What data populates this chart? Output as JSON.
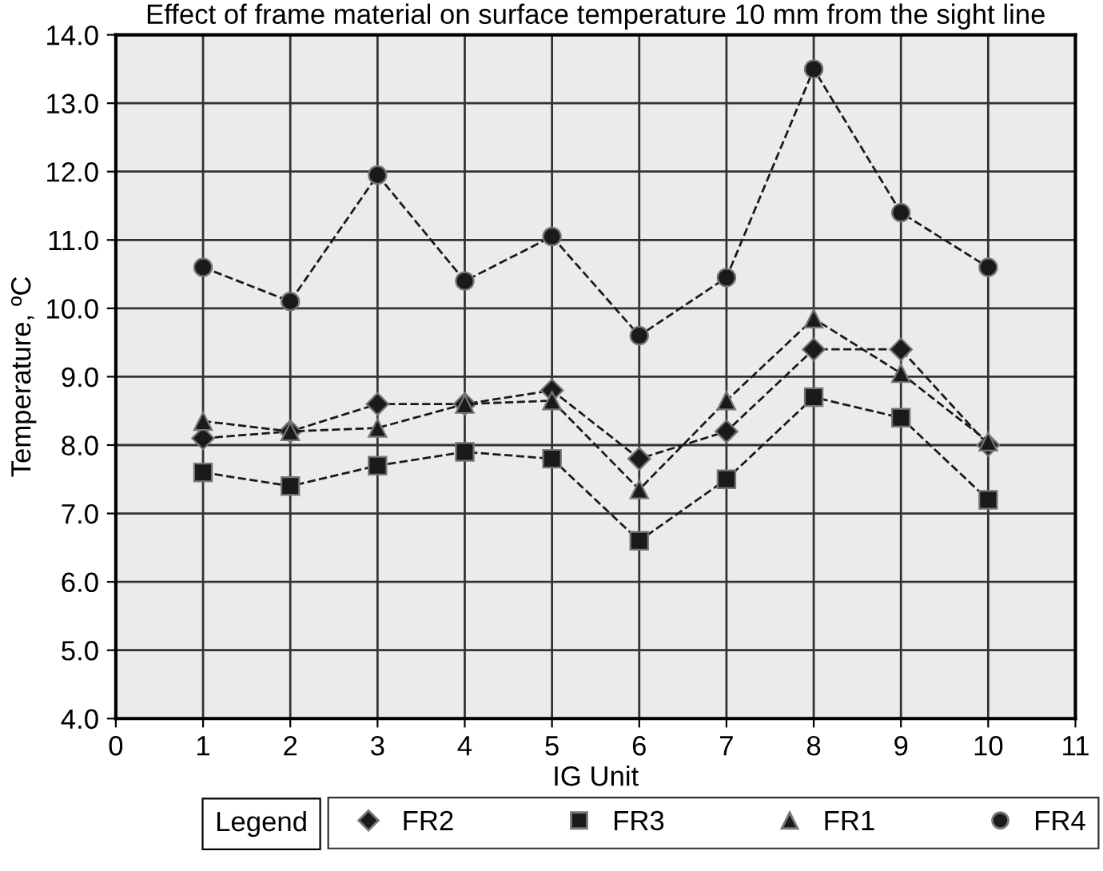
{
  "chart_data": {
    "type": "line",
    "title": "Effect of frame material on surface temperature 10 mm from the sight line",
    "xlabel": "IG Unit",
    "ylabel": "Temperature, ºC",
    "legend_title": "Legend",
    "x": [
      1,
      2,
      3,
      4,
      5,
      6,
      7,
      8,
      9,
      10
    ],
    "series": [
      {
        "name": "FR2",
        "color": "#1a1a1a",
        "marker": "diamond",
        "values": [
          8.1,
          8.2,
          8.6,
          8.6,
          8.8,
          7.8,
          8.2,
          9.4,
          9.4,
          8.0
        ]
      },
      {
        "name": "FR3",
        "color": "#1a1a1a",
        "marker": "square",
        "values": [
          7.6,
          7.4,
          7.7,
          7.9,
          7.8,
          6.6,
          7.5,
          8.7,
          8.4,
          7.2
        ]
      },
      {
        "name": "FR1",
        "color": "#1a1a1a",
        "marker": "triangle",
        "values": [
          8.35,
          8.2,
          8.25,
          8.6,
          8.65,
          7.35,
          8.65,
          9.85,
          9.05,
          8.05
        ]
      },
      {
        "name": "FR4",
        "color": "#1a1a1a",
        "marker": "circle",
        "values": [
          10.6,
          10.1,
          11.95,
          10.4,
          11.05,
          9.6,
          10.45,
          13.5,
          11.4,
          10.6
        ]
      }
    ],
    "xlim": [
      0,
      11
    ],
    "xticks": [
      0,
      1,
      2,
      3,
      4,
      5,
      6,
      7,
      8,
      9,
      10,
      11
    ],
    "ylim": [
      4,
      14
    ],
    "yticks": [
      {
        "value": 4,
        "label": "4.0"
      },
      {
        "value": 5,
        "label": "5.0"
      },
      {
        "value": 6,
        "label": "6.0"
      },
      {
        "value": 7,
        "label": "7.0"
      },
      {
        "value": 8,
        "label": "8.0"
      },
      {
        "value": 9,
        "label": "9.0"
      },
      {
        "value": 10,
        "label": "10.0"
      },
      {
        "value": 11,
        "label": "11.0"
      },
      {
        "value": 12,
        "label": "12.0"
      },
      {
        "value": 13,
        "label": "13.0"
      },
      {
        "value": 14,
        "label": "14.0"
      }
    ],
    "grid": true,
    "legend": "bottom",
    "line_style": "dashed"
  }
}
